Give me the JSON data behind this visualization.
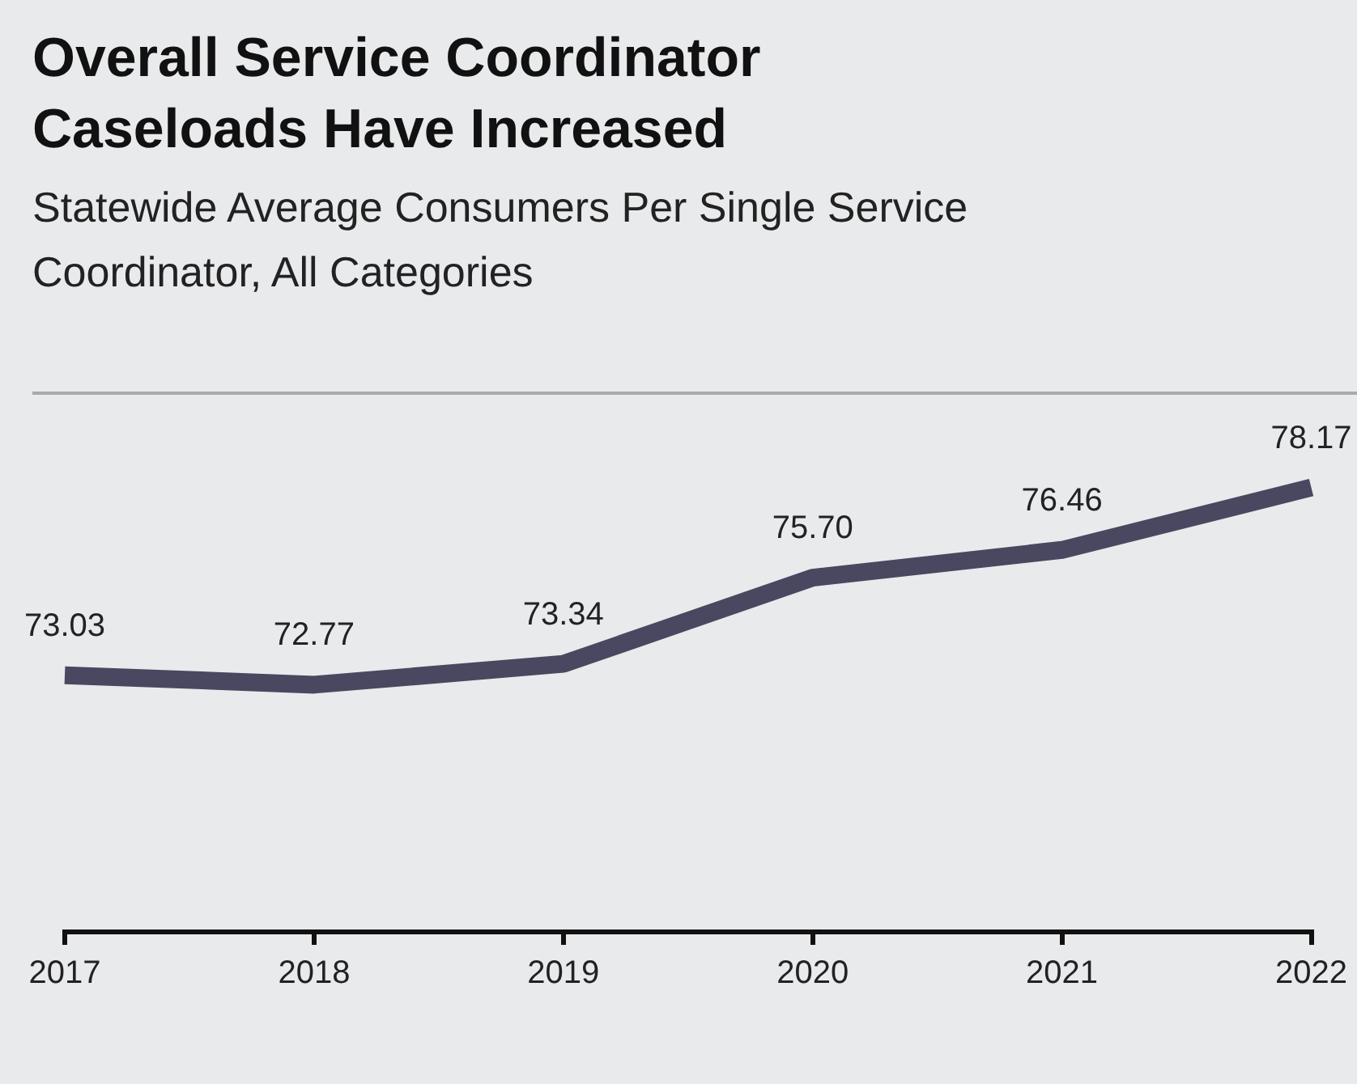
{
  "chart_data": {
    "type": "line",
    "title": "Overall Service Coordinator Caseloads Have Increased",
    "subtitle": "Statewide Average Consumers Per Single Service Coordinator, All Categories",
    "categories": [
      "2017",
      "2018",
      "2019",
      "2020",
      "2021",
      "2022"
    ],
    "series": [
      {
        "color": "#4a4860",
        "values": [
          73.03,
          72.77,
          73.34,
          75.7,
          76.46,
          78.17
        ],
        "value_labels": [
          "73.03",
          "72.77",
          "73.34",
          "75.70",
          "76.46",
          "78.17"
        ]
      }
    ],
    "tick_labels": "x",
    "grid": false,
    "legend": false,
    "marker": "none",
    "line_style": "solid"
  }
}
